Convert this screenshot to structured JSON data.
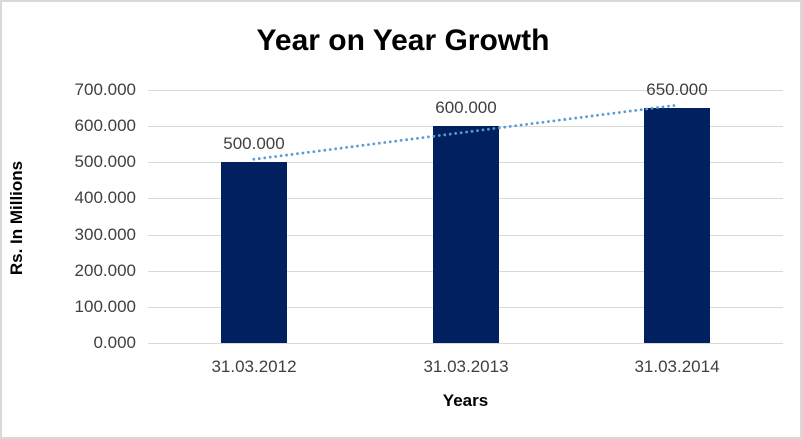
{
  "chart_data": {
    "type": "bar",
    "title": "Year on Year Growth",
    "xlabel": "Years",
    "ylabel": "Rs. In Millions",
    "categories": [
      "31.03.2012",
      "31.03.2013",
      "31.03.2014"
    ],
    "values": [
      500,
      600,
      650
    ],
    "value_labels": [
      "500.000",
      "600.000",
      "650.000"
    ],
    "ylim": [
      0,
      700
    ],
    "ytick_step": 100,
    "ytick_labels": [
      "0.000",
      "100.000",
      "200.000",
      "300.000",
      "400.000",
      "500.000",
      "600.000",
      "700.000"
    ],
    "grid": "horizontal",
    "legend": "none",
    "trendline": {
      "type": "linear",
      "style": "dotted",
      "color": "#5b9bd5"
    },
    "colors": {
      "bar": "#002060",
      "gridline": "#d9d9d9",
      "axis_text": "#404040",
      "title_text": "#000000",
      "frame_border": "#d9d9d9",
      "background": "#ffffff"
    }
  }
}
